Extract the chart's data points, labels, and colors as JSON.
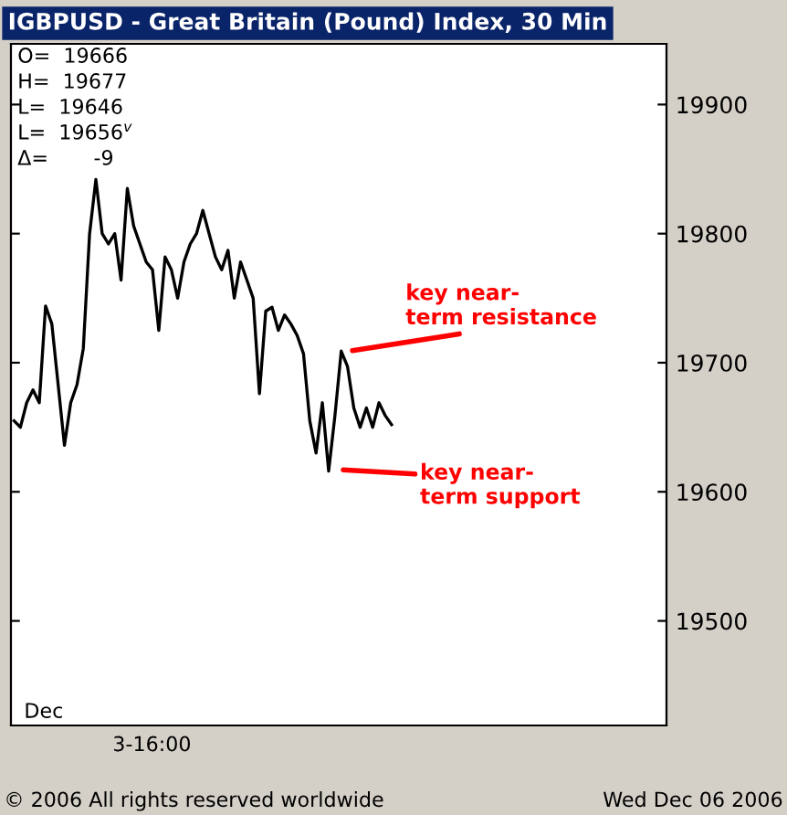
{
  "chart_data": {
    "type": "line",
    "title": "IGBPUSD - Great Britain (Pound) Index, 30 Min",
    "categories": [
      null,
      null,
      null,
      null,
      null,
      null,
      null,
      null,
      null,
      null,
      null,
      null,
      null,
      null,
      null,
      null,
      null,
      null,
      null,
      null,
      null,
      null,
      null,
      null,
      null,
      null,
      null,
      null,
      null,
      null,
      null,
      null,
      null,
      null,
      null,
      null,
      null,
      null,
      null,
      null,
      null,
      null,
      null,
      null,
      null,
      null,
      null,
      null,
      null,
      null,
      null,
      null,
      null,
      null,
      null,
      null,
      null,
      null,
      null,
      null,
      null
    ],
    "series": [
      {
        "color": "#000000",
        "values": [
          19655,
          19650,
          19669,
          19679,
          19669,
          19744,
          19730,
          19683,
          19636,
          19669,
          19683,
          19711,
          19800,
          19842,
          19800,
          19792,
          19800,
          19764,
          19835,
          19806,
          19792,
          19778,
          19772,
          19725,
          19782,
          19772,
          19750,
          19778,
          19792,
          19800,
          19818,
          19800,
          19782,
          19772,
          19787,
          19750,
          19778,
          19764,
          19750,
          19676,
          19740,
          19743,
          19725,
          19737,
          19730,
          19721,
          19707,
          19655,
          19630,
          19669,
          19616,
          19659,
          19709,
          19697,
          19665,
          19650,
          19665,
          19650,
          19669,
          19659,
          19652
        ]
      }
    ],
    "ylim": [
      19419,
      19947
    ],
    "yticks": [
      19500,
      19600,
      19700,
      19800,
      19900
    ],
    "grid": false,
    "legend": false,
    "marker": "none",
    "line_style": "solid",
    "annotations": [
      "O=  19666",
      "H=  19677",
      "L=  19646",
      "L=  19656$^{v}$",
      "Δ=       -9",
      "Wed Dec 06 2006",
      "Dec",
      "3-16:00",
      "© 2006 All rights reserved worldwide",
      "key near-\nterm resistance",
      "key near-\nterm support"
    ]
  }
}
